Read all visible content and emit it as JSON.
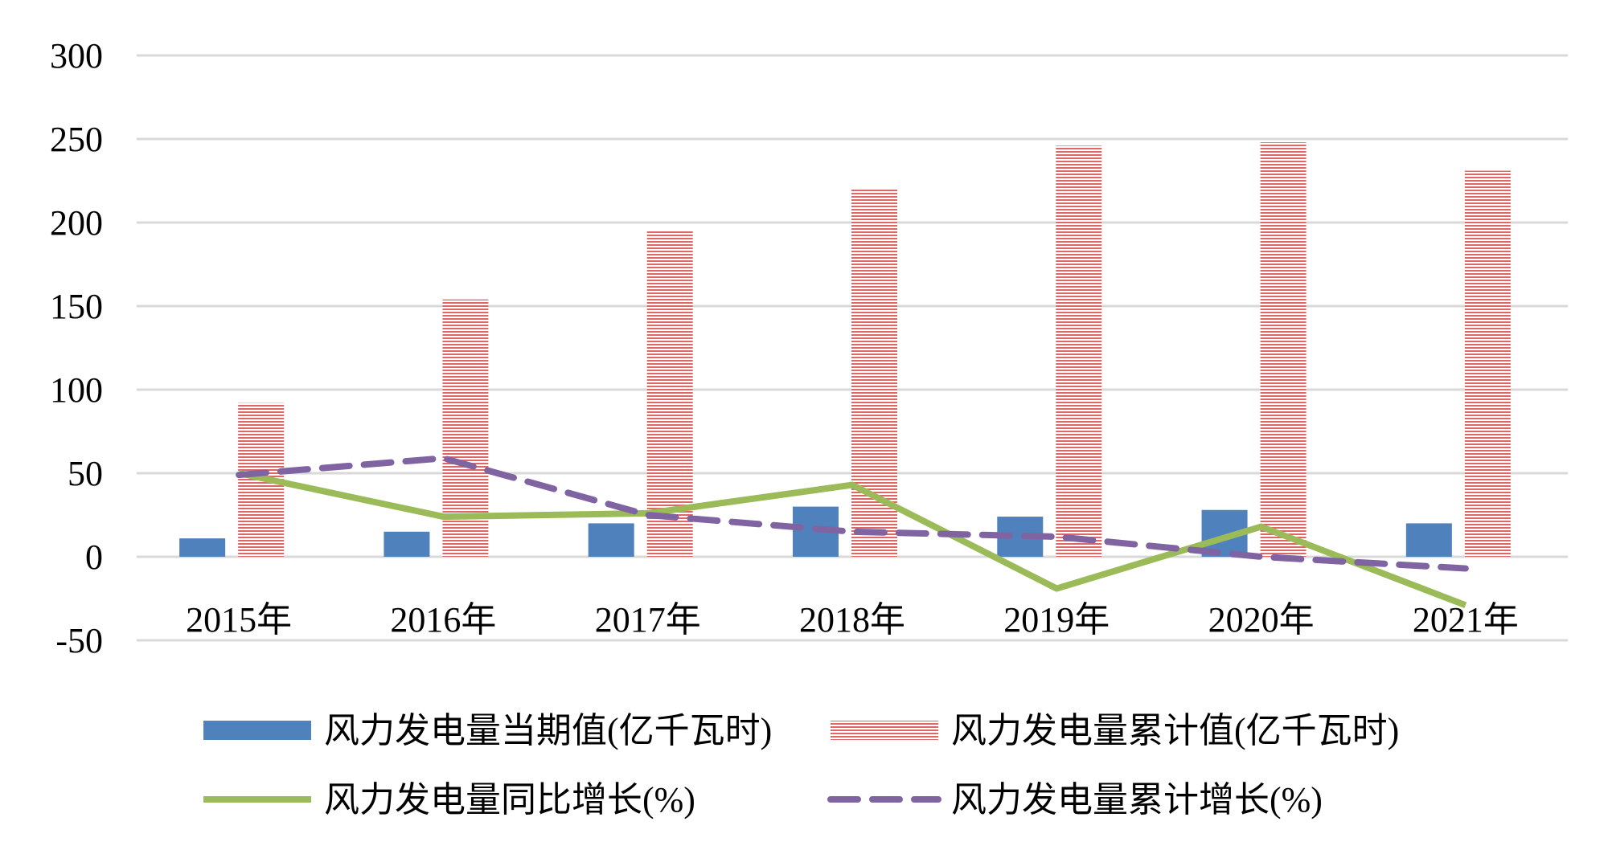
{
  "chart_data": {
    "type": "bar",
    "categories": [
      "2015年",
      "2016年",
      "2017年",
      "2018年",
      "2019年",
      "2020年",
      "2021年"
    ],
    "ylim": [
      -50,
      300
    ],
    "yticks": [
      "300",
      "250",
      "200",
      "150",
      "100",
      "50",
      "0",
      "-50"
    ],
    "ytick_values": [
      300,
      250,
      200,
      150,
      100,
      50,
      0,
      -50
    ],
    "grid": true,
    "legend_placement": "bottom",
    "series": [
      {
        "name": "风力发电量当期值(亿千瓦时)",
        "type": "bar",
        "values": [
          11,
          15,
          20,
          30,
          24,
          28,
          20
        ],
        "color": "#4f81bd"
      },
      {
        "name": "风力发电量累计值(亿千瓦时)",
        "type": "bar",
        "values": [
          92,
          154,
          195,
          220,
          246,
          248,
          231
        ],
        "color": "#e8a0a0"
      },
      {
        "name": "风力发电量同比增长(%)",
        "type": "line",
        "values": [
          50,
          24,
          26,
          43,
          -19,
          18,
          -29
        ],
        "color": "#9bbb59"
      },
      {
        "name": "风力发电量累计增长(%)",
        "type": "line",
        "values": [
          49,
          59,
          25,
          15,
          12,
          0,
          -7
        ],
        "color": "#8064a2",
        "dashed": true
      }
    ]
  }
}
